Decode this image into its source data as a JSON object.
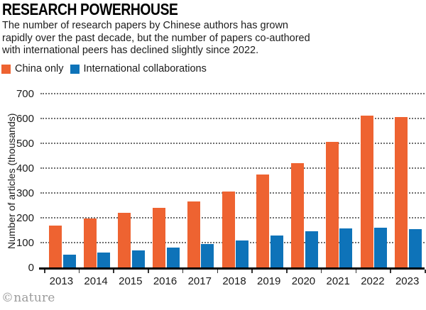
{
  "header": {
    "title": "RESEARCH POWERHOUSE",
    "subtitle_lines": [
      "The number of research papers by Chinese authors has grown",
      "rapidly over the past decade, but the number of papers co-authored",
      "with international peers has declined slightly since 2022."
    ]
  },
  "legend": {
    "items": [
      {
        "label": "China only",
        "color": "#EE6331"
      },
      {
        "label": "International collaborations",
        "color": "#0E73B9"
      }
    ]
  },
  "footer": {
    "credit": "©nature"
  },
  "colors": {
    "china_only": "#EE6331",
    "international": "#0E73B9",
    "gridline": "#6f6f6f",
    "axis": "#000000",
    "credit_gray": "#9b9b9b"
  },
  "chart_data": {
    "type": "bar",
    "title": "RESEARCH POWERHOUSE",
    "categories": [
      "2013",
      "2014",
      "2015",
      "2016",
      "2017",
      "2018",
      "2019",
      "2020",
      "2021",
      "2022",
      "2023"
    ],
    "series": [
      {
        "name": "China only",
        "color": "#EE6331",
        "values": [
          170,
          198,
          219,
          240,
          266,
          305,
          375,
          421,
          506,
          612,
          607
        ]
      },
      {
        "name": "International collaborations",
        "color": "#0E73B9",
        "values": [
          51,
          60,
          69,
          80,
          93,
          108,
          130,
          147,
          158,
          159,
          154
        ]
      }
    ],
    "xlabel": "",
    "ylabel": "Number of articles (thousands)",
    "ylim": [
      0,
      700
    ],
    "ytick_step": 100,
    "y_ticks": [
      0,
      100,
      200,
      300,
      400,
      500,
      600,
      700
    ],
    "grid": "horizontal-dotted",
    "legend_position": "top-left"
  }
}
